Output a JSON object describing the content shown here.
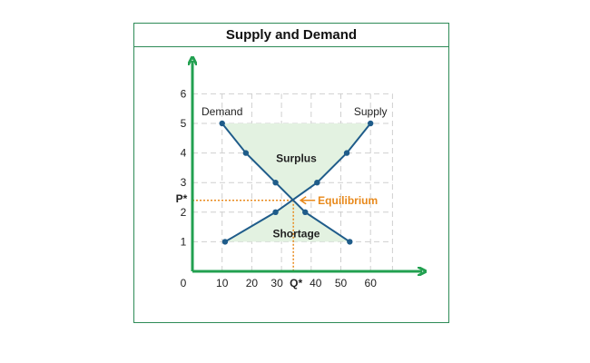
{
  "chart_data": {
    "type": "line",
    "title": "Supply and Demand",
    "xlabel": "",
    "ylabel": "",
    "xlim": [
      0,
      70
    ],
    "ylim": [
      0,
      6
    ],
    "x_ticks": [
      0,
      10,
      20,
      30,
      40,
      50,
      60
    ],
    "y_ticks": [
      1,
      2,
      3,
      4,
      5,
      6
    ],
    "grid": true,
    "series": [
      {
        "name": "Demand",
        "color": "#1f5c8a",
        "points": [
          [
            10,
            5
          ],
          [
            18,
            4
          ],
          [
            28,
            3
          ],
          [
            38,
            2
          ],
          [
            53,
            1
          ]
        ]
      },
      {
        "name": "Supply",
        "color": "#1f5c8a",
        "points": [
          [
            11,
            1
          ],
          [
            28,
            2
          ],
          [
            42,
            3
          ],
          [
            52,
            4
          ],
          [
            60,
            5
          ]
        ]
      }
    ],
    "equilibrium": {
      "x": 34,
      "y": 2.4,
      "label": "Equilibrium",
      "price_label": "P*",
      "quantity_label": "Q*",
      "color": "#e8891b"
    },
    "regions": [
      {
        "label": "Surplus",
        "fill": "#e3f2e1"
      },
      {
        "label": "Shortage",
        "fill": "#e3f2e1"
      }
    ],
    "axis_color": "#22a050"
  }
}
